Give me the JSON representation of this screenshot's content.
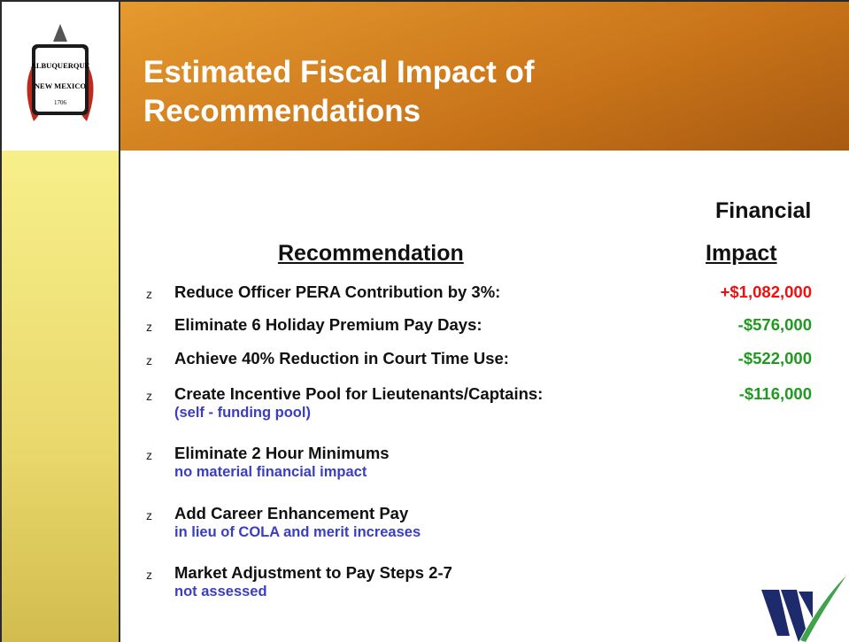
{
  "header": {
    "title_lines": [
      "Estimated Fiscal Impact of",
      "Recommendations"
    ],
    "logo": {
      "top": "ALBUQUERQUE",
      "bottom": "NEW MEXICO",
      "year": "1706"
    }
  },
  "columns": {
    "recommendation": "Recommendation",
    "impact_lines": [
      "Financial",
      "Impact"
    ]
  },
  "bullet": "z",
  "items": [
    {
      "text": "Reduce Officer PERA Contribution by 3%:",
      "impact": "+$1,082,000",
      "impact_kind": "increase"
    },
    {
      "text": "Eliminate 6 Holiday Premium Pay Days:",
      "impact": "-$576,000",
      "impact_kind": "saving"
    },
    {
      "text": "Achieve 40% Reduction in Court Time Use:",
      "impact": "-$522,000",
      "impact_kind": "saving"
    },
    {
      "text": "Create Incentive Pool for Lieutenants/Captains:",
      "impact": "-$116,000",
      "impact_kind": "saving",
      "note": "(self - funding pool)"
    },
    {
      "text": "Eliminate 2 Hour Minimums",
      "note": "no material financial impact"
    },
    {
      "text": "Add Career Enhancement Pay",
      "note": "in lieu of COLA and merit increases"
    },
    {
      "text": "Market Adjustment to Pay Steps 2-7",
      "note": "not assessed"
    }
  ]
}
